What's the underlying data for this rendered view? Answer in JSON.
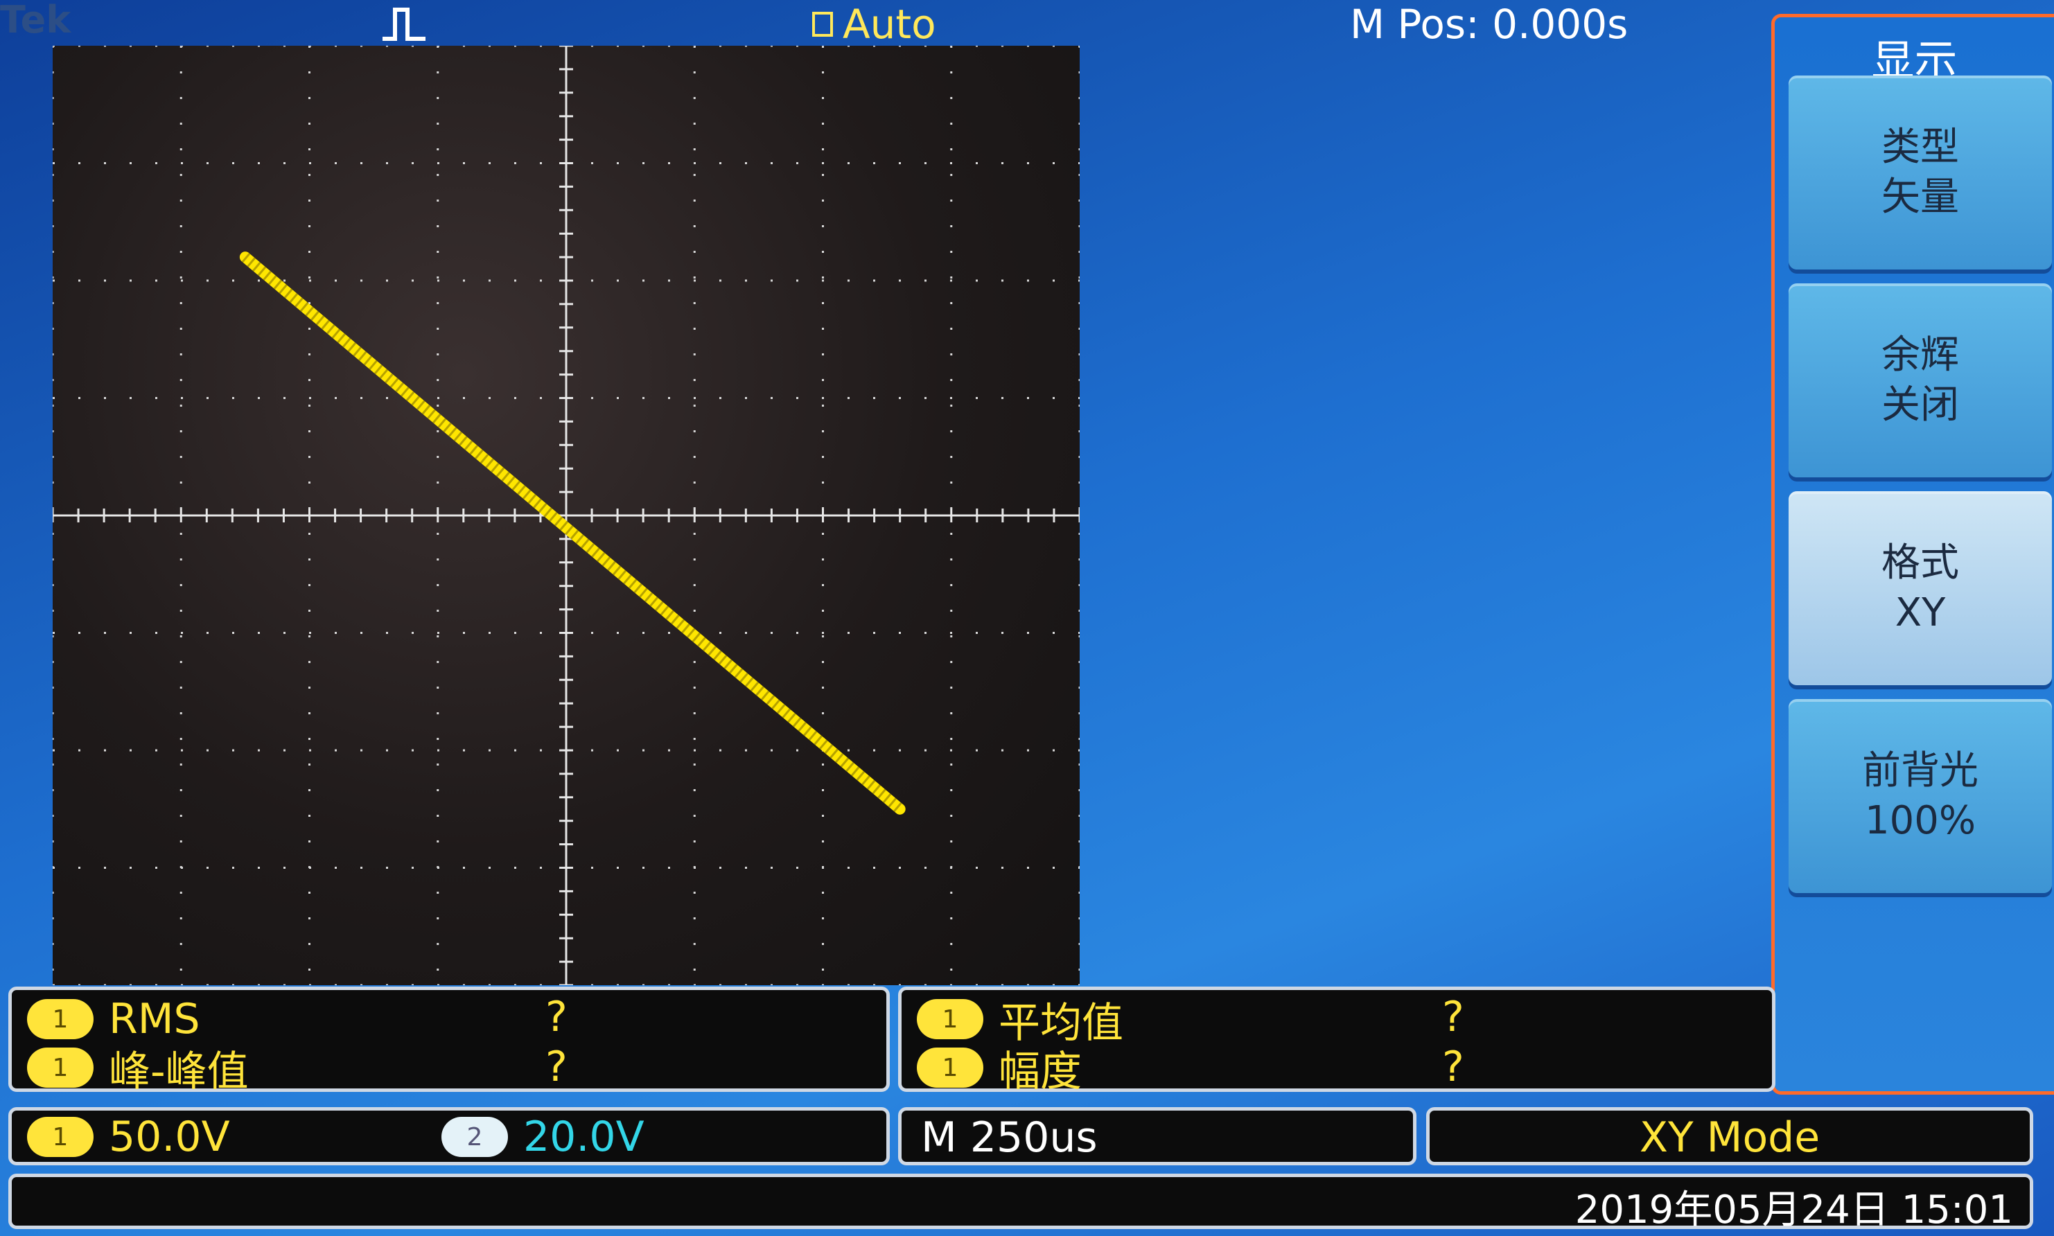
{
  "header": {
    "brand": "Tek",
    "trigger_mode": "Auto",
    "m_pos": "M Pos: 0.000s"
  },
  "menu": {
    "title": "显示",
    "buttons": [
      {
        "line1": "类型",
        "line2": "矢量"
      },
      {
        "line1": "余辉",
        "line2": "关闭"
      },
      {
        "line1": "格式",
        "line2": "XY"
      },
      {
        "line1": "前背光",
        "line2": "100%"
      }
    ]
  },
  "measurements": {
    "left": [
      {
        "channel": "1",
        "label": "RMS",
        "value": "?"
      },
      {
        "channel": "1",
        "label": "峰-峰值",
        "value": "?"
      }
    ],
    "right": [
      {
        "channel": "1",
        "label": "平均值",
        "value": "?"
      },
      {
        "channel": "1",
        "label": "幅度",
        "value": "?"
      }
    ]
  },
  "status": {
    "ch1_badge": "1",
    "ch1_scale": "50.0V",
    "ch2_badge": "2",
    "ch2_scale": "20.0V",
    "timebase": "M 250us",
    "mode": "XY Mode",
    "datetime": "2019年05月24日 15:01"
  },
  "colors": {
    "trace": "#ffe600",
    "channel1": "#ffe43a",
    "channel2": "#33d6e8",
    "menu_border": "#ff6a2a"
  }
}
